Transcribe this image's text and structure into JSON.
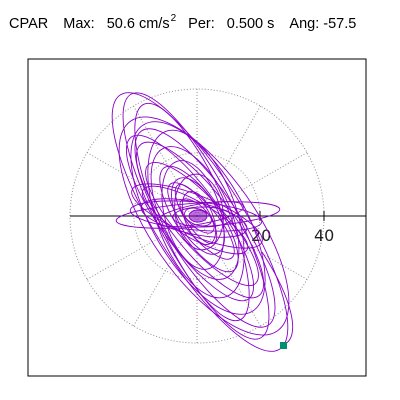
{
  "header": {
    "station": "CPAR",
    "max_label": "Max:",
    "max_value": "50.6",
    "max_unit": "cm/s",
    "max_unit_exp": "2",
    "per_label": "Per:",
    "per_value": "0.500 s",
    "ang_label": "Ang:",
    "ang_value": "-57.5"
  },
  "plot": {
    "ring_labels": [
      "20",
      "40"
    ],
    "trace_color": "#8a00c8",
    "marker_color": "#009070",
    "grid_color": "#909090"
  }
}
